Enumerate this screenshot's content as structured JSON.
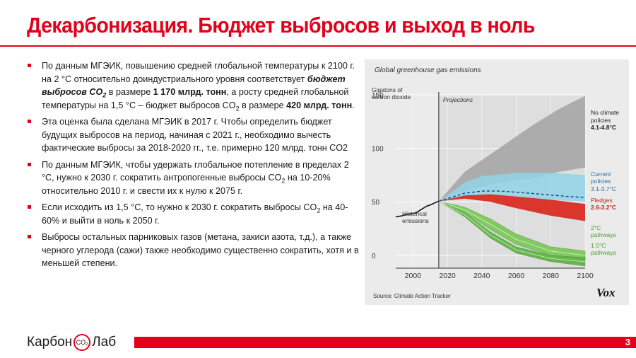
{
  "slide": {
    "title": "Декарбонизация. Бюджет выбросов и выход в ноль",
    "page_number": "3",
    "logo": {
      "left": "Карбон",
      "mid": "CO₂",
      "right": "Лаб"
    }
  },
  "bullets": [
    {
      "runs": [
        {
          "t": "По данным МГЭИК, повышению средней глобальной температуры к 2100 г. на 2 °C относительно доиндустриального уровня соответствует "
        },
        {
          "t": "бюджет выбросов CO",
          "style": "bi"
        },
        {
          "t": "2",
          "style": "bi-sub"
        },
        {
          "t": " в размере "
        },
        {
          "t": "1 170 млрд. тонн",
          "style": "b"
        },
        {
          "t": ", а росту средней глобальной температуры на 1,5 °C – бюджет выбросов CO"
        },
        {
          "t": "2",
          "style": "sub"
        },
        {
          "t": " в размере "
        },
        {
          "t": "420 млрд. тонн",
          "style": "b"
        },
        {
          "t": "."
        }
      ]
    },
    {
      "runs": [
        {
          "t": "Эта оценка была сделана МГЭИК в 2017 г. Чтобы определить бюджет будущих выбросов на период, начиная с 2021 г., необходимо вычесть фактические выбросы за 2018-2020 гг., т.е. примерно 120 млрд. тонн CO2"
        }
      ]
    },
    {
      "runs": [
        {
          "t": "По данным МГЭИК, чтобы удержать глобальное потепление в пределах 2 °C, нужно к 2030 г. сократить антропогенные выбросы CO"
        },
        {
          "t": "2",
          "style": "sub"
        },
        {
          "t": " на 10-20% относительно 2010 г. и свести их к нулю к 2075 г."
        }
      ]
    },
    {
      "runs": [
        {
          "t": "Если исходить из 1,5 °C, то нужно к 2030 г. сократить выбросы CO"
        },
        {
          "t": "2",
          "style": "sub"
        },
        {
          "t": " на 40-60% и выйти в ноль к 2050 г."
        }
      ]
    },
    {
      "runs": [
        {
          "t": "Выбросы остальных парниковых газов (метана, закиси азота, т.д.), а также черного углерода (сажи) также необходимо существенно сократить, хотя и в меньшей степени."
        }
      ]
    }
  ],
  "colors": {
    "accent": "#e3001b",
    "no_policy": "#a7a7a7",
    "current_policy": "#8fd3e8",
    "pledges": "#d9271e",
    "two_c": "#7bc85a",
    "one_five_c": "#5fb245"
  },
  "chart_data": {
    "type": "area",
    "title": "Global greenhouse gas emissions",
    "ylabel": "Gigatons of carbon dioxide",
    "projection_label": "Projections",
    "projection_start": 2015,
    "xlim": [
      1990,
      2100
    ],
    "ylim": [
      -12,
      150
    ],
    "xticks": [
      2000,
      2020,
      2040,
      2060,
      2080,
      2100
    ],
    "yticks": [
      0,
      50,
      100,
      150
    ],
    "source": "Source: Climate Action Tracker",
    "brand": "Vox",
    "grid": true,
    "historical": {
      "name": "Historical emissions",
      "x": [
        1990,
        1992,
        1994,
        1996,
        1998,
        2000,
        2002,
        2004,
        2006,
        2008,
        2010,
        2012,
        2014,
        2015
      ],
      "y": [
        36,
        36.5,
        37,
        38,
        38.5,
        39,
        40,
        42,
        44,
        46,
        47,
        48.5,
        50,
        50.5
      ]
    },
    "bands": [
      {
        "name": "No climate policies",
        "range": "4.1-4.8°C",
        "x": [
          2015,
          2030,
          2050,
          2070,
          2085,
          2100
        ],
        "upper": [
          50.5,
          78,
          100,
          122,
          137,
          149
        ],
        "lower": [
          50.5,
          60,
          68,
          72,
          78,
          82
        ]
      },
      {
        "name": "Current policies",
        "range": "3.1-3.7°C",
        "x": [
          2015,
          2030,
          2040,
          2060,
          2080,
          2100
        ],
        "upper": [
          50.5,
          68,
          74,
          77,
          77,
          75
        ],
        "lower": [
          50.5,
          54,
          56,
          55,
          52,
          50
        ]
      },
      {
        "name": "Pledges",
        "range": "2.6-3.2°C",
        "x": [
          2015,
          2030,
          2045,
          2060,
          2080,
          2100
        ],
        "upper": [
          50.5,
          56,
          57,
          55,
          52,
          48
        ],
        "lower": [
          50.5,
          53,
          50,
          44,
          37,
          32
        ]
      },
      {
        "name": "2°C pathways",
        "range": "",
        "x": [
          2015,
          2030,
          2045,
          2060,
          2080,
          2100
        ],
        "upper": [
          50.5,
          45,
          34,
          20,
          8,
          4
        ],
        "lower": [
          50.5,
          40,
          24,
          10,
          0,
          -4
        ]
      },
      {
        "name": "1.5°C pathways",
        "range": "",
        "x": [
          2015,
          2030,
          2045,
          2060,
          2080,
          2100
        ],
        "upper": [
          50.5,
          40,
          22,
          8,
          0,
          -2
        ],
        "lower": [
          50.5,
          36,
          16,
          2,
          -6,
          -10
        ]
      }
    ],
    "current_policy_median": {
      "x": [
        2015,
        2030,
        2040,
        2050,
        2060,
        2075,
        2090,
        2100
      ],
      "y": [
        50.5,
        58,
        60,
        60,
        59,
        57,
        55,
        54
      ]
    },
    "legend_placement": "right"
  }
}
